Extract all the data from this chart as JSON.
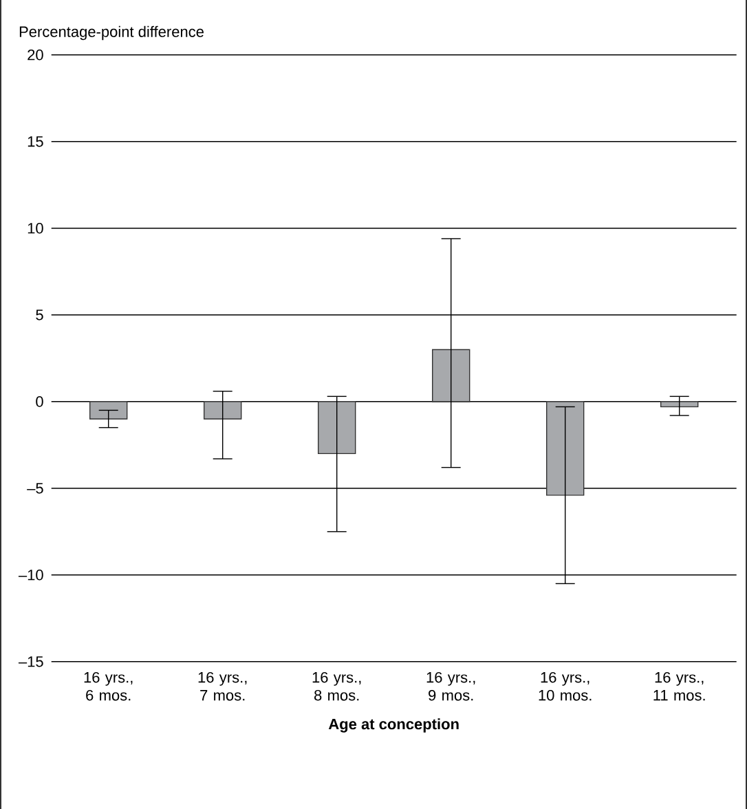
{
  "chart_data": {
    "type": "bar",
    "ylabel": "Percentage-point difference",
    "xlabel": "Age at conception",
    "categories": [
      "16 yrs., 6 mos.",
      "16 yrs., 7 mos.",
      "16 yrs., 8 mos.",
      "16 yrs., 9 mos.",
      "16 yrs., 10 mos.",
      "16 yrs., 11 mos."
    ],
    "values": [
      -1.0,
      -1.0,
      -3.0,
      3.0,
      -5.4,
      -0.3
    ],
    "errors": [
      [
        -1.5,
        -0.5
      ],
      [
        -3.3,
        0.6
      ],
      [
        -7.5,
        0.3
      ],
      [
        -3.8,
        9.4
      ],
      [
        -10.5,
        -0.3
      ],
      [
        -0.8,
        0.3
      ]
    ],
    "color": "#a7a9ac",
    "ylim": [
      -15,
      20
    ],
    "yticks": [
      {
        "value": -15,
        "label": "–15"
      },
      {
        "value": -10,
        "label": "–10"
      },
      {
        "value": -5,
        "label": "–5"
      },
      0,
      5,
      10,
      15,
      20
    ],
    "grid": "y"
  }
}
